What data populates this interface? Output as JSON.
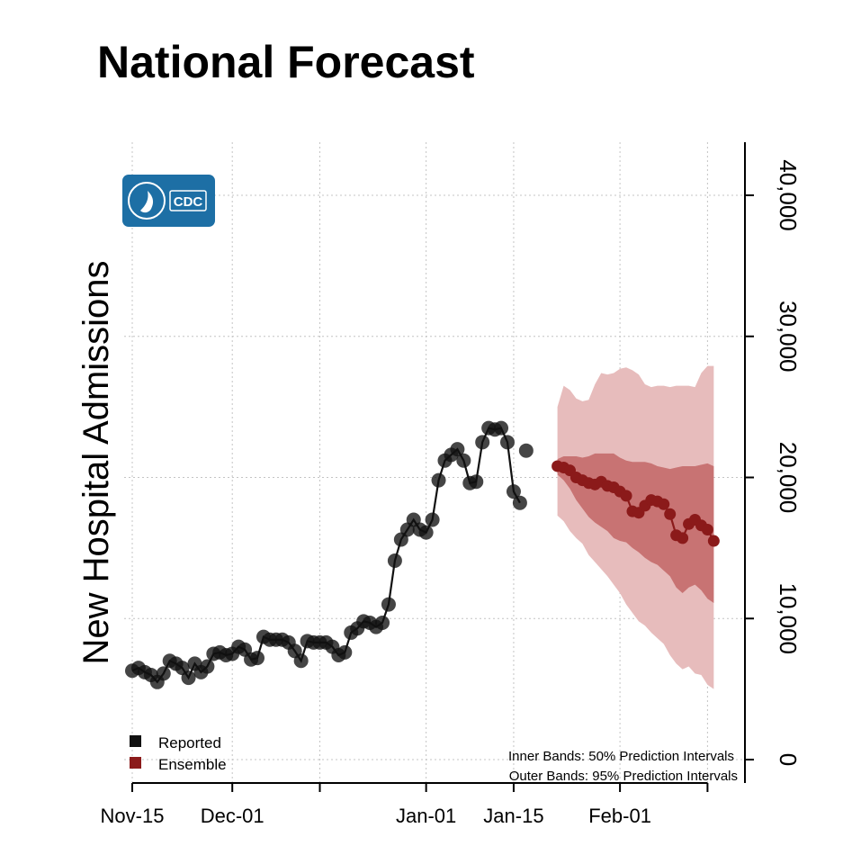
{
  "chart_data": {
    "type": "line",
    "title": "National Forecast",
    "xlabel": "",
    "ylabel": "New Hospital Admissions",
    "ylim": [
      0,
      44000
    ],
    "y_ticks": [
      {
        "value": 0,
        "label": "0"
      },
      {
        "value": 10000,
        "label": "10,000"
      },
      {
        "value": 20000,
        "label": "20,000"
      },
      {
        "value": 30000,
        "label": "30,000"
      },
      {
        "value": 40000,
        "label": "40,000"
      }
    ],
    "x_ticks": [
      {
        "day": 0,
        "label": "Nov-15"
      },
      {
        "day": 16,
        "label": "Dec-01"
      },
      {
        "day": 47,
        "label": "Jan-01"
      },
      {
        "day": 61,
        "label": "Jan-15"
      },
      {
        "day": 78,
        "label": "Feb-01"
      }
    ],
    "x_grid_days": [
      0,
      16,
      30,
      47,
      61,
      78,
      92
    ],
    "legend": [
      {
        "label": "Reported",
        "color": "#111111"
      },
      {
        "label": "Ensemble",
        "color": "#8b1a1a"
      }
    ],
    "notes": [
      "Inner Bands: 50% Prediction Intervals",
      "Outer Bands: 95% Prediction Intervals"
    ],
    "series": [
      {
        "name": "Reported",
        "color": "#111111",
        "days": [
          0,
          1,
          2,
          3,
          4,
          5,
          6,
          7,
          8,
          9,
          10,
          11,
          12,
          13,
          14,
          15,
          16,
          17,
          18,
          19,
          20,
          21,
          22,
          23,
          24,
          25,
          26,
          27,
          28,
          29,
          30,
          31,
          32,
          33,
          34,
          35,
          36,
          37,
          38,
          39,
          40,
          41,
          42,
          43,
          44,
          45,
          46,
          47,
          48,
          49,
          50,
          51,
          52,
          53,
          54,
          55,
          56,
          57,
          58,
          59,
          60,
          61,
          62
        ],
        "values": [
          6300,
          6500,
          6200,
          6000,
          5500,
          6100,
          7000,
          6800,
          6500,
          5800,
          6800,
          6200,
          6600,
          7500,
          7600,
          7400,
          7500,
          8000,
          7800,
          7100,
          7200,
          8700,
          8500,
          8500,
          8500,
          8300,
          7700,
          7000,
          8400,
          8300,
          8300,
          8300,
          8000,
          7400,
          7600,
          9000,
          9300,
          9800,
          9700,
          9400,
          9700,
          11000,
          14100,
          15600,
          16300,
          17000,
          16300,
          16100,
          17000,
          19800,
          21200,
          21600,
          22000,
          21200,
          19600,
          19700,
          22500,
          23500,
          23400,
          23500,
          22500,
          19000,
          18200
        ]
      },
      {
        "name": "Reported (latest)",
        "color": "#111111",
        "days": [
          63
        ],
        "values": [
          21900
        ]
      },
      {
        "name": "Ensemble",
        "color": "#8b1a1a",
        "days": [
          68,
          69,
          70,
          71,
          72,
          73,
          74,
          75,
          76,
          77,
          78,
          79,
          80,
          81,
          82,
          83,
          84,
          85,
          86,
          87,
          88,
          89,
          90,
          91,
          92,
          93
        ],
        "values": [
          20800,
          20700,
          20500,
          20000,
          19800,
          19600,
          19500,
          19700,
          19400,
          19300,
          19000,
          18700,
          17600,
          17500,
          18000,
          18400,
          18300,
          18100,
          17400,
          15900,
          15700,
          16700,
          17000,
          16600,
          16300,
          15500
        ],
        "pi50_lower": [
          20200,
          19800,
          19200,
          18400,
          17800,
          17200,
          16800,
          16500,
          16200,
          15700,
          15500,
          15400,
          15000,
          14700,
          14300,
          14000,
          13800,
          13400,
          13000,
          12200,
          11800,
          12200,
          12400,
          12000,
          11400,
          11100
        ],
        "pi50_upper": [
          21300,
          21500,
          21500,
          21500,
          21400,
          21500,
          21700,
          21700,
          21700,
          21700,
          21400,
          21200,
          21100,
          21100,
          21100,
          21000,
          20800,
          20700,
          20600,
          20700,
          20800,
          20800,
          20800,
          20900,
          21000,
          20800
        ],
        "pi95_lower": [
          17300,
          16900,
          16200,
          15700,
          15300,
          14500,
          14000,
          13500,
          13000,
          12400,
          11800,
          11000,
          10400,
          9800,
          9500,
          9000,
          8600,
          8200,
          7400,
          6800,
          6400,
          6600,
          6100,
          6000,
          5300,
          5000
        ],
        "pi95_upper": [
          25000,
          26500,
          26200,
          25600,
          25400,
          25500,
          26600,
          27400,
          27300,
          27400,
          27700,
          27800,
          27600,
          27300,
          26600,
          26400,
          26500,
          26500,
          26400,
          26500,
          26500,
          26500,
          26400,
          27400,
          27900,
          27900
        ]
      }
    ],
    "colors": {
      "reported": "#111111",
      "ensemble": "#8b1a1a",
      "pi50": "#c87373",
      "pi95": "#e7bcbc",
      "grid": "#c4c4c4"
    }
  }
}
